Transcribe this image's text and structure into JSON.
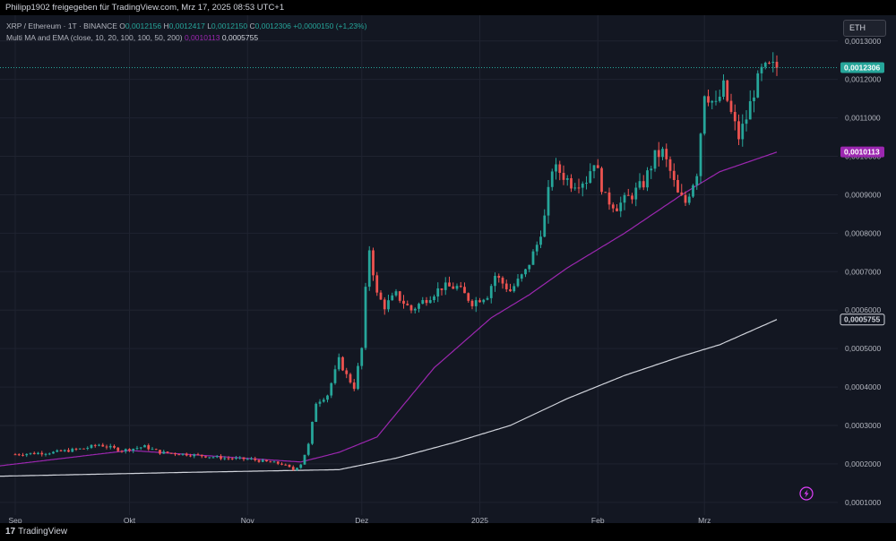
{
  "header": {
    "shared_by": "Philipp1902 freigegeben für TradingView.com, Mrz 17, 2025 08:53 UTC+1"
  },
  "legend": {
    "symbol": "XRP / Ethereum · 1T · BINANCE",
    "o_label": "O",
    "o_value": "0,0012156",
    "h_label": "H",
    "h_value": "0,0012417",
    "l_label": "L",
    "l_value": "0,0012150",
    "c_label": "C",
    "c_value": "0,0012306",
    "change": "+0,0000150 (+1,23%)",
    "indicator": "Multi MA and EMA (close, 10, 20, 100, 100, 50, 200)",
    "ma1_value": "0,0010113",
    "ma2_value": "0,0005755"
  },
  "currency_button": "ETH",
  "footer": {
    "logo_text": "TradingView",
    "logo_mark": "17"
  },
  "colors": {
    "background": "#131722",
    "up": "#26a69a",
    "down": "#ef5350",
    "ma_purple": "#9c27b0",
    "ma_white": "#d1d4dc",
    "grid": "#1f2330"
  },
  "icons": {
    "bolt": "lightning-icon"
  },
  "chart_data": {
    "type": "candlestick",
    "x_tick_labels": [
      "Sep",
      "Okt",
      "Nov",
      "Dez",
      "2025",
      "Feb",
      "Mrz"
    ],
    "y_tick_labels": [
      "0,0013000",
      "0,0012000",
      "0,0011000",
      "0,0010000",
      "0,0009000",
      "0,0008000",
      "0,0007000",
      "0,0006000",
      "0,0005000",
      "0,0004000",
      "0,0003000",
      "0,0002000",
      "0,0001000"
    ],
    "y_ticks": [
      0.0013,
      0.0012,
      0.0011,
      0.001,
      0.0009,
      0.0008,
      0.0007,
      0.0006,
      0.0005,
      0.0004,
      0.0003,
      0.0002,
      0.0001
    ],
    "ylim": [
      6.7e-05,
      0.001367
    ],
    "x_months": [
      {
        "label": "Sep",
        "start_day": 0
      },
      {
        "label": "Okt",
        "start_day": 30
      },
      {
        "label": "Nov",
        "start_day": 61
      },
      {
        "label": "Dez",
        "start_day": 91
      },
      {
        "label": "2025",
        "start_day": 122
      },
      {
        "label": "Feb",
        "start_day": 153
      },
      {
        "label": "Mrz",
        "start_day": 181
      }
    ],
    "x_range_days": [
      -4,
      216
    ],
    "price_last": 0.0012306,
    "price_markers": [
      {
        "value": "0,0012306",
        "number": 0.0012306,
        "color": "#26a69a"
      },
      {
        "value": "0,0010113",
        "number": 0.0010113,
        "color": "#9c27b0"
      },
      {
        "value": "0,0005755",
        "number": 0.0005755,
        "color": "#d1d4dc"
      }
    ],
    "close_anchors": [
      [
        0,
        0.000225
      ],
      [
        10,
        0.00023
      ],
      [
        18,
        0.00024
      ],
      [
        22,
        0.00025
      ],
      [
        28,
        0.000235
      ],
      [
        34,
        0.000245
      ],
      [
        38,
        0.00023
      ],
      [
        45,
        0.000225
      ],
      [
        55,
        0.000215
      ],
      [
        62,
        0.000212
      ],
      [
        66,
        0.000205
      ],
      [
        70,
        0.0002
      ],
      [
        73,
        0.000185
      ],
      [
        75,
        0.0002
      ],
      [
        77,
        0.00025
      ],
      [
        79,
        0.00036
      ],
      [
        82,
        0.00038
      ],
      [
        85,
        0.00047
      ],
      [
        87,
        0.00043
      ],
      [
        89,
        0.0004
      ],
      [
        91,
        0.0005
      ],
      [
        92,
        0.00065
      ],
      [
        93,
        0.00076
      ],
      [
        95,
        0.00064
      ],
      [
        97,
        0.00061
      ],
      [
        100,
        0.00064
      ],
      [
        104,
        0.0006
      ],
      [
        108,
        0.00063
      ],
      [
        112,
        0.00066
      ],
      [
        116,
        0.00066
      ],
      [
        120,
        0.00062
      ],
      [
        124,
        0.00064
      ],
      [
        126,
        0.00069
      ],
      [
        130,
        0.00065
      ],
      [
        134,
        0.0007
      ],
      [
        137,
        0.00077
      ],
      [
        139,
        0.00084
      ],
      [
        141,
        0.00097
      ],
      [
        143,
        0.00096
      ],
      [
        146,
        0.00093
      ],
      [
        150,
        0.00094
      ],
      [
        152,
        0.00099
      ],
      [
        155,
        0.00089
      ],
      [
        158,
        0.00087
      ],
      [
        162,
        0.0009
      ],
      [
        165,
        0.00093
      ],
      [
        168,
        0.001
      ],
      [
        170,
        0.00101
      ],
      [
        172,
        0.00096
      ],
      [
        174,
        0.0009
      ],
      [
        176,
        0.00088
      ],
      [
        179,
        0.00096
      ],
      [
        181,
        0.00117
      ],
      [
        184,
        0.00113
      ],
      [
        186,
        0.00118
      ],
      [
        188,
        0.00111
      ],
      [
        190,
        0.00105
      ],
      [
        192,
        0.0011
      ],
      [
        194,
        0.00117
      ],
      [
        196,
        0.00122
      ],
      [
        198,
        0.00123
      ],
      [
        200,
        0.001231
      ]
    ],
    "ma_purple_anchors": [
      [
        -4,
        0.000195
      ],
      [
        30,
        0.000235
      ],
      [
        75,
        0.000205
      ],
      [
        85,
        0.00023
      ],
      [
        95,
        0.00027
      ],
      [
        110,
        0.00045
      ],
      [
        125,
        0.00058
      ],
      [
        135,
        0.00064
      ],
      [
        145,
        0.00071
      ],
      [
        160,
        0.0008
      ],
      [
        175,
        0.0009
      ],
      [
        185,
        0.00096
      ],
      [
        200,
        0.001011
      ]
    ],
    "ma_white_anchors": [
      [
        -4,
        0.000168
      ],
      [
        45,
        0.000178
      ],
      [
        85,
        0.000185
      ],
      [
        100,
        0.000215
      ],
      [
        115,
        0.000255
      ],
      [
        130,
        0.0003
      ],
      [
        145,
        0.00037
      ],
      [
        160,
        0.00043
      ],
      [
        175,
        0.00048
      ],
      [
        185,
        0.00051
      ],
      [
        200,
        0.0005755
      ]
    ]
  }
}
